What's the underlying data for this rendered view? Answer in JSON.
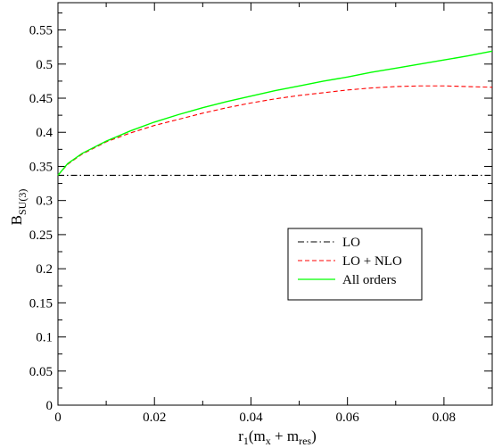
{
  "chart_data": {
    "type": "line",
    "title": "",
    "xlabel": {
      "base": "r",
      "sub1": "1",
      "open": "(m",
      "sub2": "x",
      "mid": " + m",
      "sub3": "res",
      "close": ")"
    },
    "ylabel": {
      "base": "B",
      "sub": "SU(3)"
    },
    "xlim": [
      0,
      0.09
    ],
    "ylim": [
      0,
      0.59
    ],
    "xticks": [
      0,
      0.02,
      0.04,
      0.06,
      0.08
    ],
    "xtick_labels": [
      "0",
      "0.02",
      "0.04",
      "0.06",
      "0.08"
    ],
    "yticks": [
      0,
      0.05,
      0.1,
      0.15,
      0.2,
      0.25,
      0.3,
      0.35,
      0.4,
      0.45,
      0.5,
      0.55
    ],
    "ytick_labels": [
      "0",
      "0.05",
      "0.1",
      "0.15",
      "0.2",
      "0.25",
      "0.3",
      "0.35",
      "0.4",
      "0.45",
      "0.5",
      "0.55"
    ],
    "grid": false,
    "legend_position": "center-right",
    "series": [
      {
        "name": "LO",
        "color": "#000000",
        "dash": "dashdot",
        "x": [
          0,
          0.09
        ],
        "y": [
          0.337,
          0.337
        ]
      },
      {
        "name": "LO + NLO",
        "color": "#ff0000",
        "dash": "dashed",
        "x": [
          0,
          0.002,
          0.005,
          0.01,
          0.015,
          0.02,
          0.025,
          0.03,
          0.035,
          0.04,
          0.045,
          0.05,
          0.055,
          0.06,
          0.065,
          0.07,
          0.075,
          0.08,
          0.085,
          0.09
        ],
        "y": [
          0.337,
          0.353,
          0.368,
          0.386,
          0.399,
          0.41,
          0.419,
          0.428,
          0.436,
          0.443,
          0.449,
          0.454,
          0.458,
          0.462,
          0.465,
          0.467,
          0.468,
          0.468,
          0.467,
          0.466
        ]
      },
      {
        "name": "All orders",
        "color": "#00ff00",
        "dash": "solid",
        "x": [
          0,
          0.002,
          0.005,
          0.01,
          0.015,
          0.02,
          0.025,
          0.03,
          0.035,
          0.04,
          0.045,
          0.05,
          0.055,
          0.06,
          0.065,
          0.07,
          0.075,
          0.08,
          0.085,
          0.09
        ],
        "y": [
          0.337,
          0.354,
          0.369,
          0.387,
          0.402,
          0.415,
          0.426,
          0.436,
          0.445,
          0.453,
          0.461,
          0.468,
          0.475,
          0.481,
          0.488,
          0.494,
          0.5,
          0.506,
          0.512,
          0.519
        ]
      }
    ]
  }
}
